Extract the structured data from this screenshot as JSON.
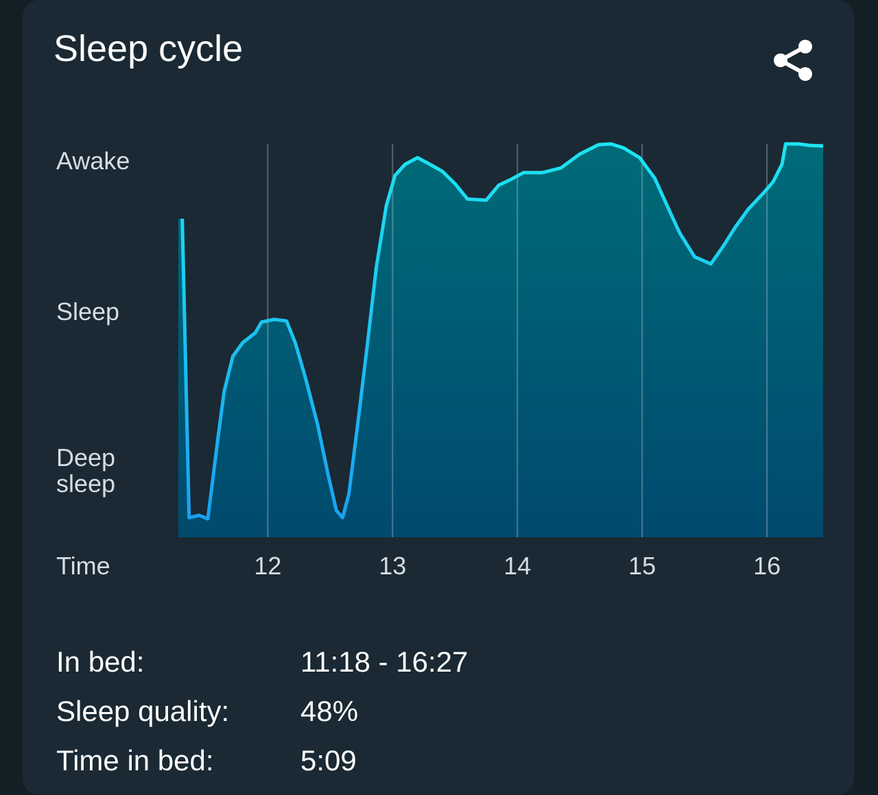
{
  "card": {
    "title": "Sleep cycle",
    "share_icon": "share-icon"
  },
  "chart_data": {
    "type": "area",
    "title": "",
    "xlabel": "Time",
    "ylabel": "",
    "xlim": [
      11.3,
      16.45
    ],
    "ylim": [
      0,
      100
    ],
    "x_ticks": [
      12,
      13,
      14,
      15,
      16
    ],
    "x_tick_labels": [
      "12",
      "13",
      "14",
      "15",
      "16"
    ],
    "y_tick_labels": [
      {
        "value": 95,
        "label": "Awake"
      },
      {
        "value": 57,
        "label": "Sleep"
      },
      {
        "value": 15,
        "label": "Deep\nsleep"
      }
    ],
    "grid": "vertical",
    "colors": {
      "line_top": "#1de4f2",
      "line_bottom": "#1a9ef0",
      "fill_top": "#006b78",
      "fill_bottom": "#004a6e"
    },
    "points": [
      [
        11.315,
        81
      ],
      [
        11.37,
        5
      ],
      [
        11.45,
        5.6
      ],
      [
        11.52,
        4.7
      ],
      [
        11.6,
        25
      ],
      [
        11.65,
        37
      ],
      [
        11.72,
        46
      ],
      [
        11.8,
        49.5
      ],
      [
        11.9,
        52
      ],
      [
        11.95,
        54.7
      ],
      [
        12.05,
        55.4
      ],
      [
        12.15,
        55
      ],
      [
        12.22,
        49.5
      ],
      [
        12.3,
        40.8
      ],
      [
        12.4,
        28.6
      ],
      [
        12.48,
        16.4
      ],
      [
        12.55,
        6.8
      ],
      [
        12.6,
        5
      ],
      [
        12.65,
        11
      ],
      [
        12.72,
        28.6
      ],
      [
        12.8,
        49.5
      ],
      [
        12.87,
        68.6
      ],
      [
        12.95,
        84.3
      ],
      [
        13.02,
        92
      ],
      [
        13.1,
        94.8
      ],
      [
        13.2,
        96.5
      ],
      [
        13.3,
        94.8
      ],
      [
        13.4,
        93
      ],
      [
        13.5,
        89.9
      ],
      [
        13.6,
        86
      ],
      [
        13.75,
        85.7
      ],
      [
        13.85,
        89.5
      ],
      [
        13.95,
        91
      ],
      [
        14.05,
        92.7
      ],
      [
        14.2,
        92.7
      ],
      [
        14.35,
        93.9
      ],
      [
        14.5,
        97.4
      ],
      [
        14.65,
        99.8
      ],
      [
        14.75,
        100
      ],
      [
        14.85,
        99
      ],
      [
        14.98,
        96.5
      ],
      [
        15.1,
        91.3
      ],
      [
        15.2,
        84.3
      ],
      [
        15.3,
        77.4
      ],
      [
        15.42,
        71.3
      ],
      [
        15.55,
        69.5
      ],
      [
        15.65,
        74
      ],
      [
        15.75,
        79
      ],
      [
        15.85,
        83.4
      ],
      [
        15.98,
        87.8
      ],
      [
        16.05,
        90.4
      ],
      [
        16.12,
        94.8
      ],
      [
        16.15,
        100
      ],
      [
        16.25,
        100
      ],
      [
        16.35,
        99.6
      ],
      [
        16.45,
        99.5
      ]
    ]
  },
  "summary": [
    {
      "label": "In bed:",
      "value": "11:18 - 16:27"
    },
    {
      "label": "Sleep quality:",
      "value": "48%"
    },
    {
      "label": "Time in bed:",
      "value": "5:09"
    }
  ]
}
